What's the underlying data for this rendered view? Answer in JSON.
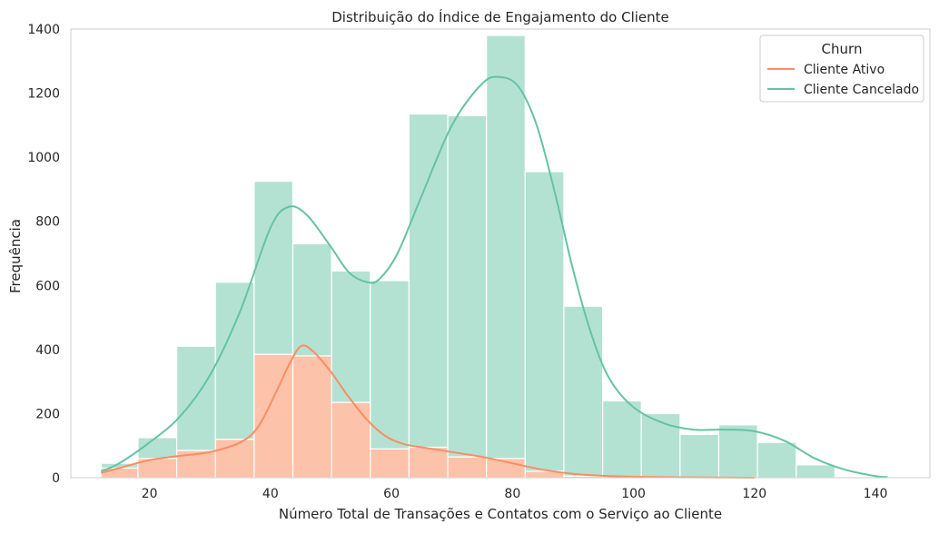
{
  "chart_data": {
    "type": "histogram",
    "title": "Distribuição do Índice de Engajamento do Cliente",
    "xlabel": "Número Total de Transações e Contatos com o Serviço ao Cliente",
    "ylabel": "Frequência",
    "xlim": [
      7,
      149
    ],
    "ylim": [
      0,
      1400
    ],
    "x_ticks": [
      20,
      40,
      60,
      80,
      100,
      120,
      140
    ],
    "y_ticks": [
      0,
      200,
      400,
      600,
      800,
      1000,
      1200,
      1400
    ],
    "grid": false,
    "legend": {
      "title": "Churn",
      "placement": "top-right",
      "entries": [
        "Cliente Ativo",
        "Cliente Cancelado"
      ]
    },
    "bin_edges": [
      12,
      18.1,
      24.5,
      30.9,
      37.3,
      43.7,
      50.1,
      56.5,
      62.9,
      69.3,
      75.7,
      82.1,
      88.5,
      94.9,
      101.3,
      107.7,
      114.1,
      120.5,
      126.9,
      133.3,
      139.7
    ],
    "colors": {
      "Cliente Ativo": {
        "bar": "#fcc2aa",
        "line": "#fc8d62"
      },
      "Cliente Cancelado": {
        "bar": "#b3e2d3",
        "line": "#66c2a5"
      }
    },
    "series": [
      {
        "name": "Cliente Ativo",
        "counts": [
          30,
          60,
          85,
          120,
          385,
          380,
          235,
          90,
          95,
          65,
          60,
          20,
          5,
          0,
          0,
          0,
          0,
          0,
          0,
          0
        ],
        "kde": [
          [
            12,
            15
          ],
          [
            15,
            30
          ],
          [
            20,
            55
          ],
          [
            25,
            68
          ],
          [
            30,
            80
          ],
          [
            35,
            110
          ],
          [
            38,
            160
          ],
          [
            41,
            270
          ],
          [
            43,
            350
          ],
          [
            45,
            410
          ],
          [
            47,
            395
          ],
          [
            50,
            330
          ],
          [
            53,
            250
          ],
          [
            56,
            180
          ],
          [
            59,
            130
          ],
          [
            62,
            105
          ],
          [
            65,
            95
          ],
          [
            70,
            80
          ],
          [
            75,
            65
          ],
          [
            80,
            45
          ],
          [
            85,
            25
          ],
          [
            90,
            12
          ],
          [
            95,
            6
          ],
          [
            100,
            3
          ],
          [
            110,
            1
          ],
          [
            120,
            0
          ]
        ]
      },
      {
        "name": "Cliente Cancelado",
        "counts": [
          15,
          65,
          325,
          490,
          540,
          350,
          410,
          525,
          1040,
          1065,
          1320,
          935,
          530,
          240,
          200,
          135,
          165,
          110,
          40,
          0
        ],
        "kde": [
          [
            12,
            20
          ],
          [
            15,
            45
          ],
          [
            20,
            110
          ],
          [
            25,
            190
          ],
          [
            30,
            320
          ],
          [
            35,
            520
          ],
          [
            40,
            780
          ],
          [
            43,
            845
          ],
          [
            46,
            820
          ],
          [
            50,
            720
          ],
          [
            53,
            640
          ],
          [
            56,
            610
          ],
          [
            58,
            620
          ],
          [
            61,
            700
          ],
          [
            65,
            880
          ],
          [
            70,
            1100
          ],
          [
            75,
            1230
          ],
          [
            78,
            1250
          ],
          [
            81,
            1220
          ],
          [
            84,
            1100
          ],
          [
            87,
            890
          ],
          [
            90,
            650
          ],
          [
            93,
            450
          ],
          [
            96,
            310
          ],
          [
            100,
            220
          ],
          [
            105,
            170
          ],
          [
            110,
            150
          ],
          [
            115,
            150
          ],
          [
            120,
            145
          ],
          [
            125,
            115
          ],
          [
            130,
            60
          ],
          [
            135,
            25
          ],
          [
            140,
            5
          ],
          [
            142,
            2
          ]
        ]
      }
    ]
  }
}
